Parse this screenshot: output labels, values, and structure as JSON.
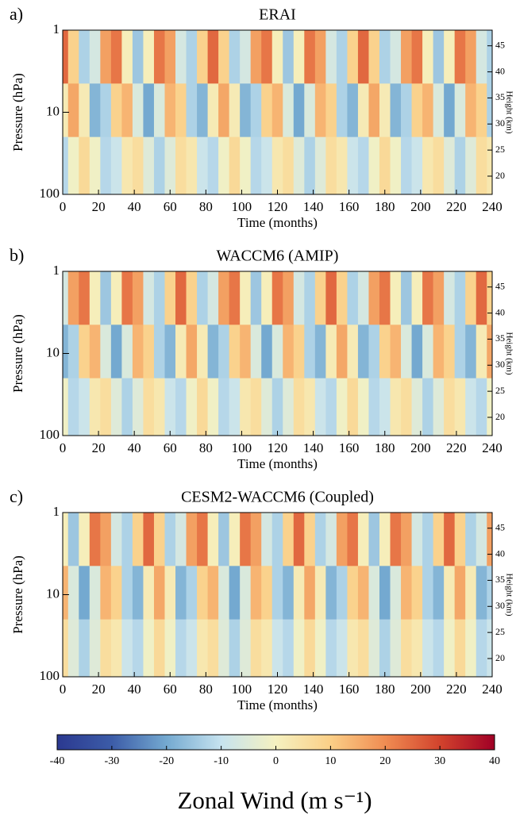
{
  "chart_data": [
    {
      "type": "heatmap",
      "panel_label": "a)",
      "title": "ERAI",
      "xlabel": "Time (months)",
      "ylabel": "Pressure (hPa)",
      "y2label": "Height (km)",
      "x": [
        0,
        6,
        12,
        18,
        24,
        30,
        36,
        42,
        48,
        54,
        60,
        66,
        72,
        78,
        84,
        90,
        96,
        102,
        108,
        114,
        120,
        126,
        132,
        138,
        144,
        150,
        156,
        162,
        168,
        174,
        180,
        186,
        192,
        198,
        204,
        210,
        216,
        222,
        228,
        234,
        240
      ],
      "levels": [
        2,
        10,
        40
      ],
      "z": [
        [
          25,
          9,
          -13,
          -7,
          17,
          23,
          1,
          -15,
          1,
          23,
          17,
          -7,
          -13,
          9,
          25,
          9,
          -13,
          -7,
          17,
          23,
          1,
          -15,
          1,
          23,
          17,
          -7,
          -13,
          9,
          25,
          9,
          -13,
          -7,
          17,
          23,
          1,
          -15,
          1,
          23,
          17,
          -7,
          -13
        ],
        [
          2,
          16,
          2,
          -18,
          -13,
          9,
          14,
          -6,
          -20,
          -6,
          14,
          9,
          -13,
          -18,
          2,
          16,
          2,
          -18,
          -13,
          9,
          14,
          -6,
          -20,
          -6,
          14,
          9,
          -13,
          -18,
          2,
          16,
          2,
          -18,
          -13,
          9,
          14,
          -6,
          -20,
          -6,
          14,
          9,
          -13
        ],
        [
          -12,
          -1,
          7,
          -1,
          -12,
          -9,
          3,
          6,
          -5,
          -13,
          -5,
          6,
          3,
          -9,
          -12,
          -1,
          7,
          -1,
          -12,
          -9,
          3,
          6,
          -5,
          -13,
          -5,
          6,
          3,
          -9,
          -12,
          -1,
          7,
          -1,
          -12,
          -9,
          3,
          6,
          -5,
          -13,
          -5,
          6,
          3
        ]
      ],
      "xlim": [
        0,
        240
      ],
      "xticks": [
        0,
        20,
        40,
        60,
        80,
        100,
        120,
        140,
        160,
        180,
        200,
        220,
        240
      ],
      "ylim": [
        100,
        1
      ],
      "yticks": [
        1,
        10,
        100
      ],
      "log_y": true,
      "y2lim": [
        16.5,
        48
      ],
      "y2ticks": [
        20,
        25,
        30,
        35,
        40,
        45
      ]
    },
    {
      "type": "heatmap",
      "panel_label": "b)",
      "title": "WACCM6 (AMIP)",
      "xlabel": "Time (months)",
      "ylabel": "Pressure (hPa)",
      "y2label": "Height (km)",
      "x": [
        0,
        6,
        12,
        18,
        24,
        30,
        36,
        42,
        48,
        54,
        60,
        66,
        72,
        78,
        84,
        90,
        96,
        102,
        108,
        114,
        120,
        126,
        132,
        138,
        144,
        150,
        156,
        162,
        168,
        174,
        180,
        186,
        192,
        198,
        204,
        210,
        216,
        222,
        228,
        234,
        240
      ],
      "levels": [
        2,
        10,
        40
      ],
      "z": [
        [
          -7,
          17,
          23,
          1,
          -15,
          1,
          23,
          17,
          -7,
          -13,
          9,
          25,
          9,
          -13,
          -7,
          17,
          23,
          1,
          -15,
          1,
          23,
          17,
          -7,
          -13,
          9,
          25,
          9,
          -13,
          -7,
          17,
          23,
          1,
          -15,
          1,
          23,
          17,
          -7,
          -13,
          9,
          25,
          9
        ],
        [
          -18,
          -13,
          9,
          14,
          -6,
          -20,
          -6,
          14,
          9,
          -13,
          -18,
          2,
          16,
          2,
          -18,
          -13,
          9,
          14,
          -6,
          -20,
          -6,
          14,
          9,
          -13,
          -18,
          2,
          16,
          2,
          -18,
          -13,
          9,
          14,
          -6,
          -20,
          -6,
          14,
          9,
          -13,
          -18,
          2,
          16
        ],
        [
          -1,
          -12,
          -9,
          3,
          6,
          -5,
          -13,
          -5,
          6,
          3,
          -9,
          -12,
          -1,
          7,
          -1,
          -12,
          -9,
          3,
          6,
          -5,
          -13,
          -5,
          6,
          3,
          -9,
          -12,
          -1,
          7,
          -1,
          -12,
          -9,
          3,
          6,
          -5,
          -13,
          -5,
          6,
          3,
          -9,
          -12,
          -1
        ]
      ],
      "xlim": [
        0,
        240
      ],
      "xticks": [
        0,
        20,
        40,
        60,
        80,
        100,
        120,
        140,
        160,
        180,
        200,
        220,
        240
      ],
      "ylim": [
        100,
        1
      ],
      "yticks": [
        1,
        10,
        100
      ],
      "log_y": true,
      "y2lim": [
        16.5,
        48
      ],
      "y2ticks": [
        20,
        25,
        30,
        35,
        40,
        45
      ]
    },
    {
      "type": "heatmap",
      "panel_label": "c)",
      "title": "CESM2-WACCM6 (Coupled)",
      "xlabel": "Time (months)",
      "ylabel": "Pressure (hPa)",
      "y2label": "Height (km)",
      "x": [
        0,
        6,
        12,
        18,
        24,
        30,
        36,
        42,
        48,
        54,
        60,
        66,
        72,
        78,
        84,
        90,
        96,
        102,
        108,
        114,
        120,
        126,
        132,
        138,
        144,
        150,
        156,
        162,
        168,
        174,
        180,
        186,
        192,
        198,
        204,
        210,
        216,
        222,
        228,
        234,
        240
      ],
      "levels": [
        2,
        10,
        40
      ],
      "z": [
        [
          1,
          -15,
          1,
          23,
          17,
          -7,
          -13,
          9,
          25,
          9,
          -13,
          -7,
          17,
          23,
          1,
          -15,
          1,
          23,
          17,
          -7,
          -13,
          9,
          25,
          9,
          -13,
          -7,
          17,
          23,
          1,
          -15,
          1,
          23,
          17,
          -7,
          -13,
          9,
          25,
          9,
          -13,
          -7,
          17
        ],
        [
          14,
          -6,
          -20,
          -6,
          14,
          9,
          -13,
          -18,
          2,
          16,
          2,
          -18,
          -13,
          9,
          14,
          -6,
          -20,
          -6,
          14,
          9,
          -13,
          -18,
          2,
          16,
          2,
          -18,
          -13,
          9,
          14,
          -6,
          -20,
          -6,
          14,
          9,
          -13,
          -18,
          2,
          16,
          2,
          -18,
          -13
        ],
        [
          6,
          -5,
          -13,
          -5,
          6,
          3,
          -9,
          -12,
          -1,
          7,
          -1,
          -12,
          -9,
          3,
          6,
          -5,
          -13,
          -5,
          6,
          3,
          -9,
          -12,
          -1,
          7,
          -1,
          -12,
          -9,
          3,
          6,
          -5,
          -13,
          -5,
          6,
          3,
          -9,
          -12,
          -1,
          7,
          -1,
          -12,
          -9
        ]
      ],
      "xlim": [
        0,
        240
      ],
      "xticks": [
        0,
        20,
        40,
        60,
        80,
        100,
        120,
        140,
        160,
        180,
        200,
        220,
        240
      ],
      "ylim": [
        100,
        1
      ],
      "yticks": [
        1,
        10,
        100
      ],
      "log_y": true,
      "y2lim": [
        16.5,
        48
      ],
      "y2ticks": [
        20,
        25,
        30,
        35,
        40,
        45
      ]
    }
  ],
  "colorbar": {
    "label": "Zonal Wind (m s⁻¹)",
    "lim": [
      -40,
      40
    ],
    "ticks": [
      -40,
      -30,
      -20,
      -10,
      0,
      10,
      20,
      30,
      40
    ],
    "colormap": [
      "#2b3990",
      "#3c5ca8",
      "#74a9d0",
      "#c6e3ef",
      "#f5f1c0",
      "#fbcf87",
      "#f08c52",
      "#d2432d",
      "#a00026"
    ]
  }
}
